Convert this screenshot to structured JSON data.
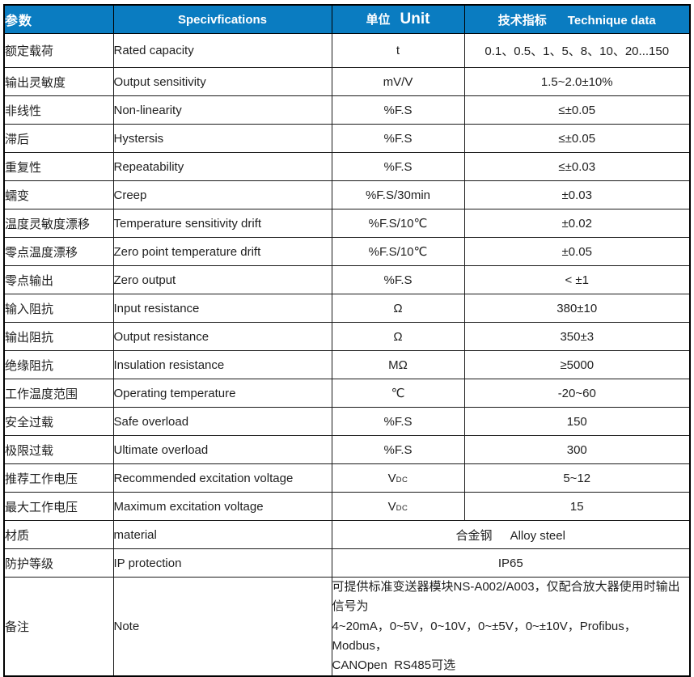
{
  "colors": {
    "header_bg": "#0a7cc1",
    "header_text": "#ffffff",
    "border": "#000000",
    "body_text": "#1f1f1f"
  },
  "header": {
    "param": "参数",
    "spec": "Specivfications",
    "unit_zh": "单位",
    "unit_en": "Unit",
    "data_zh": "技术指标",
    "data_en": "Technique data"
  },
  "rows": [
    {
      "param": "额定载荷",
      "spec": "Rated capacity",
      "unit": "t",
      "value": "0.1、0.5、1、5、8、10、20...150"
    },
    {
      "param": "输出灵敏度",
      "spec": "Output sensitivity",
      "unit": "mV/V",
      "value": "1.5~2.0±10%"
    },
    {
      "param": "非线性",
      "spec": "Non-linearity",
      "unit": "%F.S",
      "value": "≤±0.05"
    },
    {
      "param": "滞后",
      "spec": "Hystersis",
      "unit": "%F.S",
      "value": "≤±0.05"
    },
    {
      "param": "重复性",
      "spec": "Repeatability",
      "unit": "%F.S",
      "value": "≤±0.03"
    },
    {
      "param": "蠕变",
      "spec": "Creep",
      "unit": "%F.S/30min",
      "value": "±0.03"
    },
    {
      "param": "温度灵敏度漂移",
      "spec": "Temperature sensitivity drift",
      "unit": "%F.S/10℃",
      "value": "±0.02"
    },
    {
      "param": "零点温度漂移",
      "spec": "Zero point temperature drift",
      "unit": "%F.S/10℃",
      "value": "±0.05"
    },
    {
      "param": "零点输出",
      "spec": "Zero output",
      "unit": "%F.S",
      "value": "< ±1"
    },
    {
      "param": "输入阻抗",
      "spec": "Input resistance",
      "unit": "Ω",
      "value": "380±10"
    },
    {
      "param": "输出阻抗",
      "spec": "Output resistance",
      "unit": "Ω",
      "value": "350±3"
    },
    {
      "param": "绝缘阻抗",
      "spec": "Insulation resistance",
      "unit": "MΩ",
      "value": "≥5000"
    },
    {
      "param": "工作温度范围",
      "spec": "Operating temperature",
      "unit": "℃",
      "value": "-20~60"
    },
    {
      "param": "安全过载",
      "spec": "Safe overload",
      "unit": "%F.S",
      "value": "150"
    },
    {
      "param": "极限过载",
      "spec": "Ultimate overload",
      "unit": "%F.S",
      "value": "300"
    },
    {
      "param": "推荐工作电压",
      "spec": "Recommended excitation voltage",
      "unit": "V",
      "unit_sub": "DC",
      "value": "5~12"
    },
    {
      "param": "最大工作电压",
      "spec": "Maximum excitation voltage",
      "unit": "V",
      "unit_sub": "DC",
      "value": "15"
    },
    {
      "param": "材质",
      "spec": "material",
      "value_zh": "合金钢",
      "value_en": "Alloy steel"
    },
    {
      "param": "防护等级",
      "spec": "IP protection",
      "value": "IP65"
    },
    {
      "param": "备注",
      "spec": "Note",
      "value": "可提供标准变送器模块NS-A002/A003，仅配合放大器使用时输出信号为\n4~20mA，0~5V，0~10V，0~±5V，0~±10V，Profibus，Modbus，\nCANOpen  RS485可选"
    }
  ]
}
